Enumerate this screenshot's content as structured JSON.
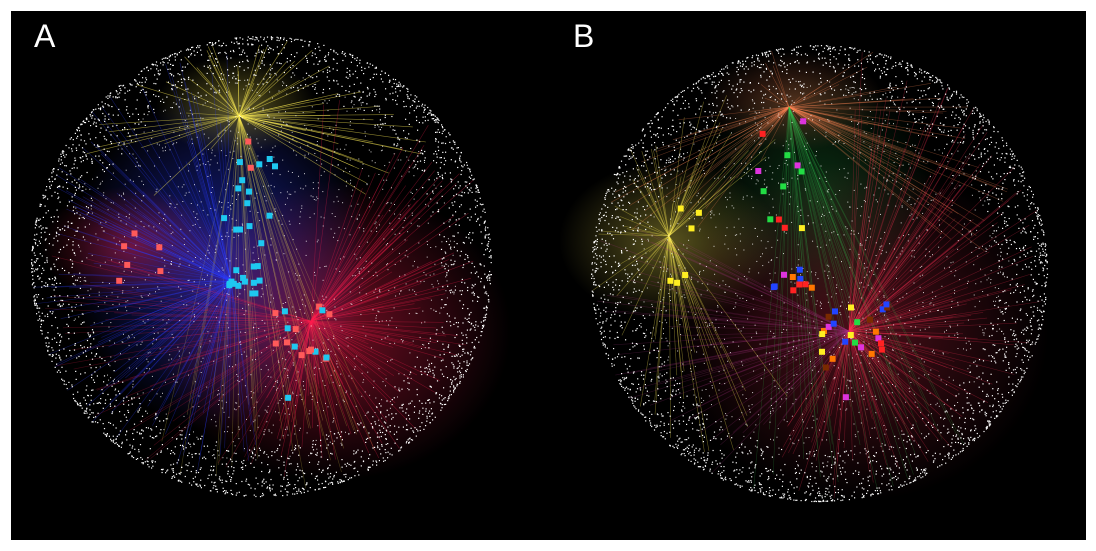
{
  "figure": {
    "panels": [
      {
        "label": "A",
        "node_colors": [
          "#1ec8f0",
          "#ff5a5a"
        ],
        "glow_colors": [
          "#2a3cff",
          "#ff2050",
          "#ffee55"
        ]
      },
      {
        "label": "B",
        "node_colors": [
          "#ffee22",
          "#22dd44",
          "#ff2222",
          "#dd33dd",
          "#2244ff",
          "#ff7700",
          "#7a2a00"
        ],
        "glow_colors": [
          "#ffee55",
          "#33cc55",
          "#ff3355",
          "#aa3388",
          "#ff8855"
        ]
      }
    ],
    "background_color": "#000000",
    "point_color": "#ffffff"
  }
}
